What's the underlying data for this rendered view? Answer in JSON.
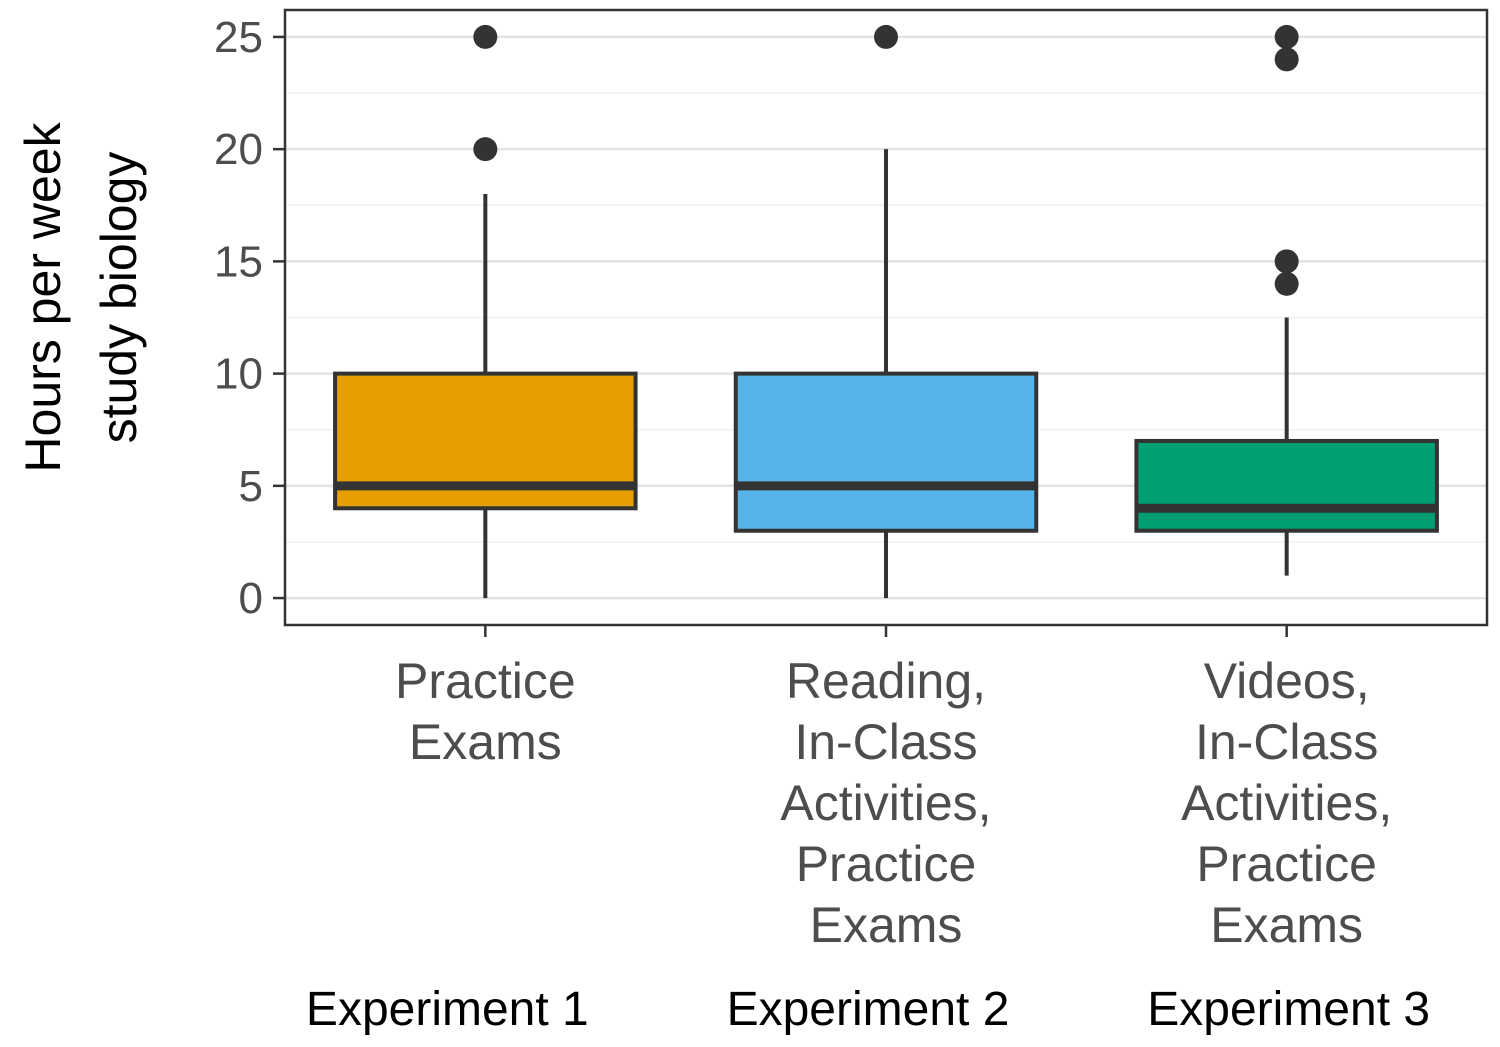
{
  "chart_data": {
    "type": "box",
    "title": "",
    "ylabel": [
      "Hours per week",
      "study biology"
    ],
    "xlabel": "",
    "ylim": [
      -1.2,
      26.2
    ],
    "yticks": [
      0,
      5,
      10,
      15,
      20,
      25
    ],
    "grid": true,
    "categories": [
      {
        "label": [
          "Practice",
          "Exams"
        ],
        "group": "Experiment 1",
        "color": "#E69F00",
        "whisker_low": 0,
        "q1": 4,
        "median": 5,
        "q3": 10,
        "whisker_high": 18,
        "outliers": [
          20,
          25
        ]
      },
      {
        "label": [
          "Reading,",
          "In-Class",
          "Activities,",
          "Practice",
          "Exams"
        ],
        "group": "Experiment 2",
        "color": "#56B4E9",
        "whisker_low": 0,
        "q1": 3,
        "median": 5,
        "q3": 10,
        "whisker_high": 20,
        "outliers": [
          25
        ]
      },
      {
        "label": [
          "Videos,",
          "In-Class",
          "Activities,",
          "Practice",
          "Exams"
        ],
        "group": "Experiment 3",
        "color": "#009E73",
        "whisker_low": 1,
        "q1": 3,
        "median": 4,
        "q3": 7,
        "whisker_high": 12.5,
        "outliers": [
          14,
          15,
          24,
          25
        ]
      }
    ]
  }
}
